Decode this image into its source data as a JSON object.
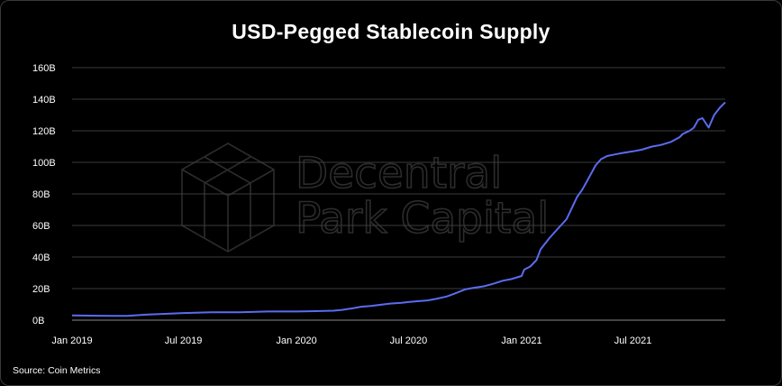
{
  "chart_data": {
    "type": "line",
    "title": "USD-Pegged Stablecoin Supply",
    "xlabel": "",
    "ylabel": "",
    "ylim": [
      0,
      160
    ],
    "grid": true,
    "legend": "none",
    "line_color": "#5b6cf0",
    "y_ticks": [
      "0B",
      "20B",
      "40B",
      "60B",
      "80B",
      "100B",
      "120B",
      "140B",
      "160B"
    ],
    "x_ticks": [
      "Jan 2019",
      "Jul 2019",
      "Jan 2020",
      "Jul 2020",
      "Jan 2021",
      "Jul 2021"
    ],
    "x_tick_dates": [
      "2019-01-01",
      "2019-07-01",
      "2020-01-01",
      "2020-07-01",
      "2021-01-01",
      "2021-07-01"
    ],
    "x_range": [
      "2019-01-01",
      "2021-11-28"
    ],
    "series": [
      {
        "x": [
          "2019-01-01",
          "2019-02-15",
          "2019-04-01",
          "2019-05-01",
          "2019-06-01",
          "2019-07-01",
          "2019-08-15",
          "2019-10-01",
          "2019-11-15",
          "2020-01-01",
          "2020-02-01",
          "2020-03-01",
          "2020-03-15",
          "2020-04-01",
          "2020-04-15",
          "2020-05-01",
          "2020-06-01",
          "2020-06-20",
          "2020-07-01",
          "2020-07-15",
          "2020-08-01",
          "2020-08-15",
          "2020-09-01",
          "2020-09-15",
          "2020-10-01",
          "2020-10-15",
          "2020-11-01",
          "2020-11-15",
          "2020-12-01",
          "2020-12-15",
          "2021-01-01",
          "2021-01-05",
          "2021-01-15",
          "2021-01-25",
          "2021-02-01",
          "2021-02-15",
          "2021-03-01",
          "2021-03-15",
          "2021-04-01",
          "2021-04-10",
          "2021-04-20",
          "2021-05-01",
          "2021-05-10",
          "2021-05-20",
          "2021-06-01",
          "2021-06-15",
          "2021-07-01",
          "2021-07-15",
          "2021-08-01",
          "2021-08-15",
          "2021-09-01",
          "2021-09-15",
          "2021-09-20",
          "2021-10-01",
          "2021-10-08",
          "2021-10-15",
          "2021-10-22",
          "2021-11-01",
          "2021-11-10",
          "2021-11-20",
          "2021-11-28"
        ],
        "values": [
          3,
          2.8,
          2.7,
          3.5,
          4,
          4.5,
          5,
          5,
          5.5,
          5.5,
          5.7,
          6,
          6.5,
          7.5,
          8.5,
          9,
          10.5,
          11,
          11.5,
          12,
          12.5,
          13.5,
          15,
          17,
          19.5,
          20.5,
          21.5,
          23,
          25,
          26,
          28,
          32,
          34,
          38,
          45,
          52,
          58,
          64,
          78,
          83,
          90,
          98,
          102,
          104,
          105,
          106,
          107,
          108,
          110,
          111,
          113,
          116,
          118,
          120,
          122,
          127,
          128,
          122,
          130,
          135,
          138
        ]
      }
    ]
  },
  "watermark": {
    "line1": "Decentral",
    "line2": "Park Capital",
    "logo": "cube-logo-icon"
  },
  "source": "Source: Coin Metrics"
}
